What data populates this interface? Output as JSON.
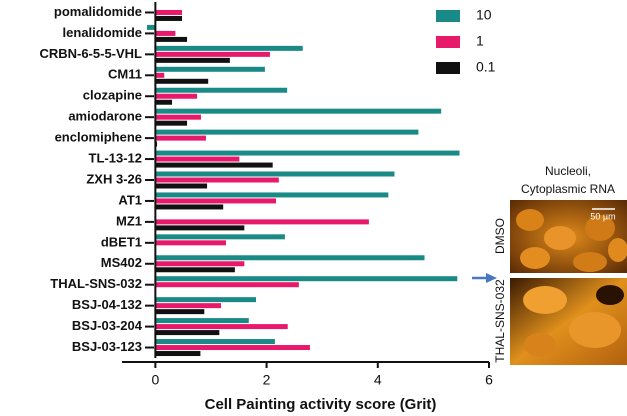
{
  "chart_data": {
    "type": "bar",
    "orientation": "horizontal",
    "x_label": "Cell Painting activity score (Grit)",
    "categories": [
      "pomalidomide",
      "lenalidomide",
      "CRBN-6-5-5-VHL",
      "CM11",
      "clozapine",
      "amiodarone",
      "enclomiphene",
      "TL-13-12",
      "ZXH 3-26",
      "AT1",
      "MZ1",
      "dBET1",
      "MS402",
      "THAL-SNS-032",
      "BSJ-04-132",
      "BSJ-03-204",
      "BSJ-03-123"
    ],
    "series": [
      {
        "name": "10",
        "color": "#1a8a86",
        "values": [
          0,
          -0.15,
          2.65,
          1.97,
          2.37,
          5.14,
          4.73,
          5.47,
          4.3,
          4.19,
          0,
          2.33,
          4.84,
          5.43,
          1.81,
          1.68,
          2.15
        ]
      },
      {
        "name": "1",
        "color": "#e8196b",
        "values": [
          0.48,
          0.36,
          2.06,
          0.16,
          0.75,
          0.82,
          0.91,
          1.51,
          2.22,
          2.17,
          3.84,
          1.27,
          1.6,
          2.58,
          1.18,
          2.38,
          2.78
        ]
      },
      {
        "name": "0.1",
        "color": "#111111",
        "values": [
          0.48,
          0.57,
          1.34,
          0.95,
          0.3,
          0.57,
          0.03,
          2.11,
          0.93,
          1.22,
          1.6,
          0,
          1.43,
          0,
          0.88,
          1.15,
          0.81
        ]
      }
    ],
    "xlim": [
      -0.6,
      6
    ],
    "xticks": [
      0,
      2,
      4,
      6
    ],
    "legend": "top-right",
    "inset": {
      "title": [
        "Nucleoli,",
        "Cytoplasmic RNA"
      ],
      "scale_bar": "50 µm",
      "panels": [
        "DMSO",
        "THAL-SNS-032"
      ]
    }
  }
}
